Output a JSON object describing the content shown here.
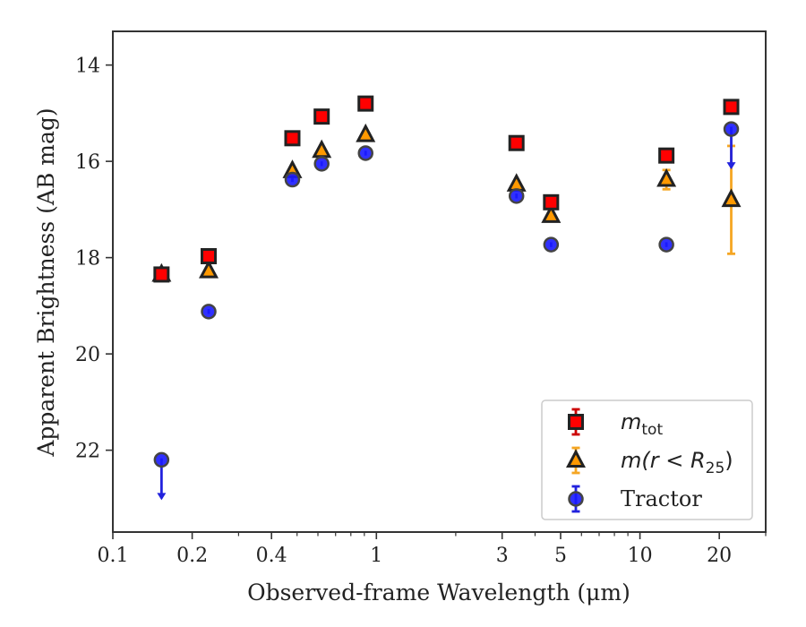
{
  "chart_data": {
    "type": "scatter",
    "title": "",
    "xlabel": "Observed-frame Wavelength (μm)",
    "ylabel": "Apparent Brightness (AB mag)",
    "xscale": "log",
    "xlim": [
      0.1,
      30
    ],
    "ylim": [
      23.7,
      13.3
    ],
    "y_inverted": true,
    "x_ticks": [
      {
        "value": 0.1,
        "label": "0.1"
      },
      {
        "value": 0.2,
        "label": "0.2"
      },
      {
        "value": 0.4,
        "label": "0.4"
      },
      {
        "value": 1,
        "label": "1"
      },
      {
        "value": 3,
        "label": "3"
      },
      {
        "value": 5,
        "label": "5"
      },
      {
        "value": 10,
        "label": "10"
      },
      {
        "value": 20,
        "label": "20"
      }
    ],
    "y_ticks": [
      {
        "value": 14,
        "label": "14"
      },
      {
        "value": 16,
        "label": "16"
      },
      {
        "value": 18,
        "label": "18"
      },
      {
        "value": 20,
        "label": "20"
      },
      {
        "value": 22,
        "label": "22"
      }
    ],
    "legend_position": "bottom-right",
    "series": [
      {
        "name": "m_tot",
        "marker": "square",
        "color": "#ff0000",
        "edge_color": "#222222",
        "error_color": "#cc0000",
        "points": [
          {
            "x": 0.153,
            "y": 18.35,
            "err": 0.05
          },
          {
            "x": 0.231,
            "y": 17.97,
            "err": 0.05
          },
          {
            "x": 0.48,
            "y": 15.52,
            "err": 0.05
          },
          {
            "x": 0.62,
            "y": 15.07,
            "err": 0.05
          },
          {
            "x": 0.91,
            "y": 14.8,
            "err": 0.05
          },
          {
            "x": 3.4,
            "y": 15.62,
            "err": 0.05
          },
          {
            "x": 4.6,
            "y": 16.85,
            "err": 0.05
          },
          {
            "x": 12.6,
            "y": 15.88,
            "err": 0.05
          },
          {
            "x": 22.2,
            "y": 14.87,
            "err": 0.05
          }
        ]
      },
      {
        "name": "m(r < R_25)",
        "marker": "triangle",
        "color": "#ff9900",
        "edge_color": "#222222",
        "error_color": "#f5a623",
        "points": [
          {
            "x": 0.153,
            "y": 18.35,
            "err": 0.05
          },
          {
            "x": 0.231,
            "y": 18.28,
            "err": 0.05
          },
          {
            "x": 0.48,
            "y": 16.2,
            "err": 0.05
          },
          {
            "x": 0.62,
            "y": 15.78,
            "err": 0.05
          },
          {
            "x": 0.91,
            "y": 15.45,
            "err": 0.05
          },
          {
            "x": 3.4,
            "y": 16.48,
            "err": 0.05
          },
          {
            "x": 4.6,
            "y": 17.13,
            "err": 0.05
          },
          {
            "x": 12.6,
            "y": 16.38,
            "err": 0.2
          },
          {
            "x": 22.2,
            "y": 16.8,
            "err": 1.12
          }
        ]
      },
      {
        "name": "Tractor",
        "marker": "circle",
        "color": "#1a1aff",
        "edge_color": "#444444",
        "error_color": "#2222dd",
        "points": [
          {
            "x": 0.153,
            "y": 22.2,
            "err": 0.03,
            "upper_limit": true
          },
          {
            "x": 0.231,
            "y": 19.12,
            "err": 0.05
          },
          {
            "x": 0.48,
            "y": 16.38,
            "err": 0.05
          },
          {
            "x": 0.62,
            "y": 16.05,
            "err": 0.05
          },
          {
            "x": 0.91,
            "y": 15.83,
            "err": 0.05
          },
          {
            "x": 3.4,
            "y": 16.72,
            "err": 0.05
          },
          {
            "x": 4.6,
            "y": 17.73,
            "err": 0.05
          },
          {
            "x": 12.6,
            "y": 17.73,
            "err": 0.05
          },
          {
            "x": 22.2,
            "y": 15.33,
            "err": 0.05,
            "upper_limit": true
          }
        ]
      }
    ],
    "legend": [
      {
        "marker": "square",
        "base": "m",
        "sub": "tot",
        "suffix": ""
      },
      {
        "marker": "triangle",
        "base": "m(r < R",
        "sub": "25",
        "suffix": ")"
      },
      {
        "marker": "circle",
        "base": "Tractor",
        "sub": "",
        "suffix": ""
      }
    ]
  }
}
